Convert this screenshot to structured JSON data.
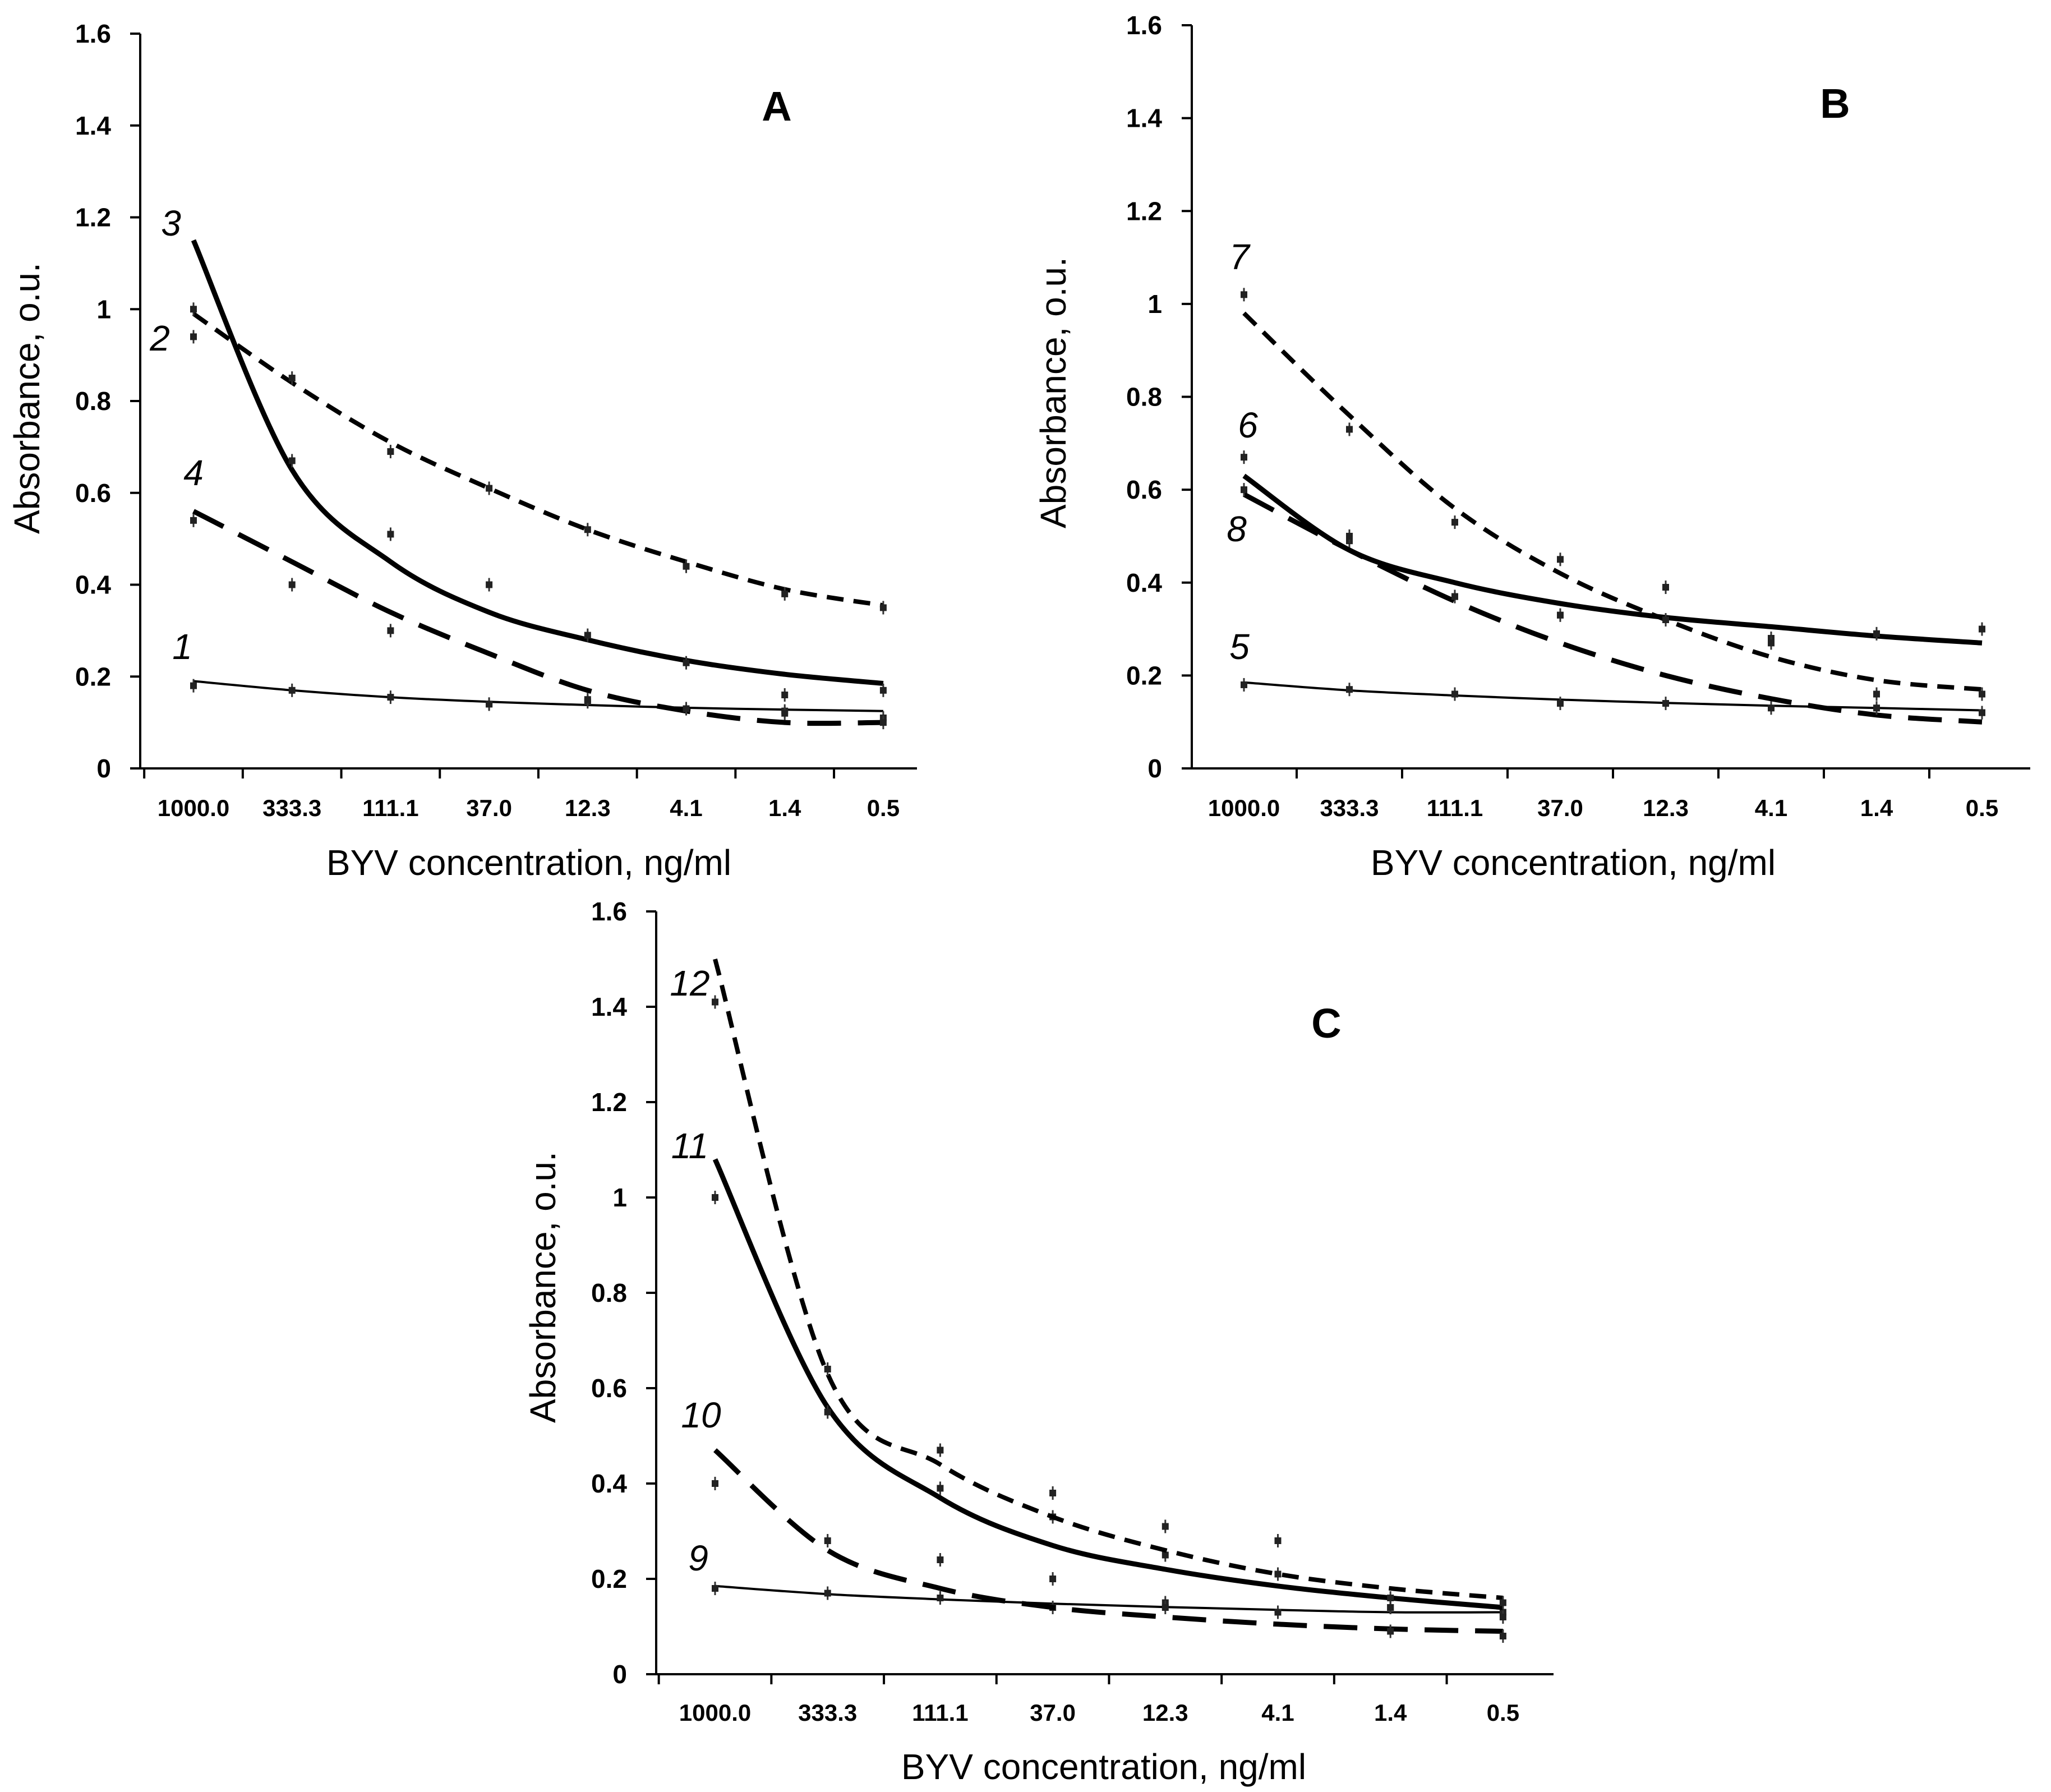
{
  "chart_data": [
    {
      "type": "line",
      "title": "A",
      "xlabel": "BYV concentration, ng/ml",
      "ylabel": "Absorbance, o.u.",
      "categories": [
        "1000.0",
        "333.3",
        "111.1",
        "37.0",
        "12.3",
        "4.1",
        "1.4",
        "0.5"
      ],
      "ylim": [
        0,
        1.6
      ],
      "yticks": [
        "0",
        "0.2",
        "0.4",
        "0.6",
        "0.8",
        "1",
        "1.2",
        "1.4",
        "1.6"
      ],
      "series": [
        {
          "name": "1",
          "style": "thin",
          "points": [
            0.18,
            0.17,
            0.155,
            0.14,
            0.145,
            0.13,
            0.125,
            0.11
          ],
          "fit": [
            0.19,
            0.17,
            0.155,
            0.145,
            0.138,
            0.132,
            0.128,
            0.125
          ]
        },
        {
          "name": "2",
          "style": "short-dash",
          "points": [
            1.0,
            0.85,
            0.69,
            0.61,
            0.52,
            0.44,
            0.38,
            0.35
          ],
          "fit": [
            0.99,
            0.84,
            0.71,
            0.61,
            0.52,
            0.45,
            0.39,
            0.355
          ]
        },
        {
          "name": "3",
          "style": "solid",
          "points": [
            0.94,
            0.67,
            0.51,
            0.4,
            0.29,
            0.23,
            0.16,
            0.17
          ],
          "fit": [
            1.15,
            0.65,
            0.45,
            0.34,
            0.28,
            0.235,
            0.205,
            0.185
          ]
        },
        {
          "name": "4",
          "style": "long-dash",
          "points": [
            0.54,
            0.4,
            0.3,
            0.14,
            0.15,
            0.13,
            0.12,
            0.1
          ],
          "fit": [
            0.56,
            0.45,
            0.34,
            0.25,
            0.17,
            0.125,
            0.1,
            0.1
          ]
        }
      ]
    },
    {
      "type": "line",
      "title": "B",
      "xlabel": "BYV concentration, ng/ml",
      "ylabel": "Absorbance, o.u.",
      "categories": [
        "1000.0",
        "333.3",
        "111.1",
        "37.0",
        "12.3",
        "4.1",
        "1.4",
        "0.5"
      ],
      "ylim": [
        0,
        1.6
      ],
      "yticks": [
        "0",
        "0.2",
        "0.4",
        "0.6",
        "0.8",
        "1",
        "1.2",
        "1.4",
        "1.6"
      ],
      "series": [
        {
          "name": "5",
          "style": "thin",
          "points": [
            0.18,
            0.17,
            0.16,
            0.14,
            0.14,
            0.13,
            0.13,
            0.12
          ],
          "fit": [
            0.185,
            0.168,
            0.157,
            0.148,
            0.141,
            0.135,
            0.13,
            0.125
          ]
        },
        {
          "name": "6",
          "style": "solid",
          "points": [
            0.67,
            0.49,
            0.37,
            0.33,
            0.32,
            0.28,
            0.29,
            0.3
          ],
          "fit": [
            0.63,
            0.47,
            0.4,
            0.355,
            0.325,
            0.305,
            0.285,
            0.27
          ]
        },
        {
          "name": "7",
          "style": "short-dash",
          "points": [
            1.02,
            0.73,
            0.53,
            0.45,
            0.39,
            0.28,
            0.16,
            0.16
          ],
          "fit": [
            0.98,
            0.76,
            0.56,
            0.42,
            0.32,
            0.24,
            0.19,
            0.17
          ]
        },
        {
          "name": "8",
          "style": "long-dash",
          "points": [
            0.6,
            0.5,
            0.37,
            0.33,
            0.32,
            0.27,
            0.13,
            0.12
          ],
          "fit": [
            0.59,
            0.47,
            0.36,
            0.27,
            0.2,
            0.15,
            0.115,
            0.1
          ]
        }
      ]
    },
    {
      "type": "line",
      "title": "C",
      "xlabel": "BYV concentration, ng/ml",
      "ylabel": "Absorbance, o.u.",
      "categories": [
        "1000.0",
        "333.3",
        "111.1",
        "37.0",
        "12.3",
        "4.1",
        "1.4",
        "0.5"
      ],
      "ylim": [
        0,
        1.6
      ],
      "yticks": [
        "0",
        "0.2",
        "0.4",
        "0.6",
        "0.8",
        "1",
        "1.2",
        "1.4",
        "1.6"
      ],
      "series": [
        {
          "name": "9",
          "style": "thin",
          "points": [
            0.18,
            0.17,
            0.16,
            0.14,
            0.15,
            0.13,
            0.14,
            0.13
          ],
          "fit": [
            0.185,
            0.168,
            0.157,
            0.148,
            0.141,
            0.135,
            0.13,
            0.13
          ]
        },
        {
          "name": "10",
          "style": "long-dash",
          "points": [
            0.4,
            0.28,
            0.24,
            0.2,
            0.14,
            0.13,
            0.09,
            0.08
          ],
          "fit": [
            0.47,
            0.26,
            0.18,
            0.14,
            0.12,
            0.105,
            0.095,
            0.09
          ]
        },
        {
          "name": "11",
          "style": "solid",
          "points": [
            1.0,
            0.55,
            0.39,
            0.33,
            0.25,
            0.21,
            0.16,
            0.12
          ],
          "fit": [
            1.08,
            0.56,
            0.37,
            0.27,
            0.22,
            0.185,
            0.16,
            0.14
          ]
        },
        {
          "name": "12",
          "style": "short-dash",
          "points": [
            1.41,
            0.64,
            0.47,
            0.38,
            0.31,
            0.28,
            0.14,
            0.15
          ],
          "fit": [
            1.5,
            0.63,
            0.44,
            0.33,
            0.26,
            0.21,
            0.18,
            0.16
          ]
        }
      ]
    }
  ]
}
